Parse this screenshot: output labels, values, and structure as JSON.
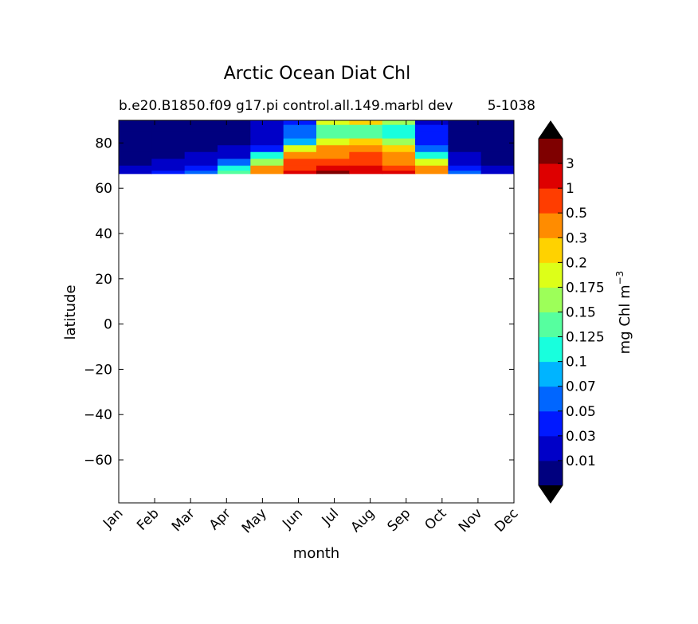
{
  "chart_data": {
    "type": "heatmap",
    "title": "Arctic Ocean Diat Chl",
    "subtitle_left": "b.e20.B1850.f09 g17.pi control.all.149.marbl dev",
    "subtitle_right": "5-1038",
    "xlabel": "month",
    "ylabel": "latitude",
    "x_ticks": [
      "Jan",
      "Feb",
      "Mar",
      "Apr",
      "May",
      "Jun",
      "Jul",
      "Aug",
      "Sep",
      "Oct",
      "Nov",
      "Dec"
    ],
    "y_ticks": [
      80,
      60,
      40,
      20,
      0,
      -20,
      -40,
      -60
    ],
    "y_tick_labels": [
      "80",
      "60",
      "40",
      "20",
      "0",
      "−20",
      "−40",
      "−60"
    ],
    "ylim": [
      -79,
      90
    ],
    "data_lat_min": 66.5,
    "colorbar": {
      "label": "mg Chl m",
      "label_exponent": "−3",
      "levels": [
        "0.01",
        "0.03",
        "0.05",
        "0.07",
        "0.1",
        "0.125",
        "0.15",
        "0.175",
        "0.2",
        "0.3",
        "0.5",
        "1",
        "3"
      ],
      "colors": [
        "#00007f",
        "#0000c8",
        "#0019ff",
        "#0066ff",
        "#00b4ff",
        "#18ffdd",
        "#56ff9f",
        "#9dff59",
        "#ddff18",
        "#ffd200",
        "#ff8c00",
        "#ff3d00",
        "#de0000",
        "#7f0000"
      ],
      "extend_colors": [
        "#000000",
        "#000000"
      ]
    },
    "grid_lat": [
      89.5,
      86.5,
      83.5,
      80.5,
      77.5,
      74.5,
      71.5,
      68.5,
      67
    ],
    "z": [
      [
        0,
        0,
        0,
        0,
        1,
        2,
        8,
        9,
        7,
        1,
        0,
        0
      ],
      [
        0,
        0,
        0,
        0,
        1,
        3,
        6,
        6,
        5,
        2,
        0,
        0
      ],
      [
        0,
        0,
        0,
        0,
        1,
        3,
        6,
        6,
        5,
        2,
        0,
        0
      ],
      [
        0,
        0,
        0,
        0,
        1,
        4,
        8,
        9,
        7,
        2,
        0,
        0
      ],
      [
        0,
        0,
        0,
        1,
        2,
        8,
        10,
        10,
        9,
        3,
        0,
        0
      ],
      [
        0,
        0,
        1,
        1,
        5,
        10,
        10,
        11,
        10,
        5,
        1,
        0
      ],
      [
        0,
        1,
        1,
        3,
        7,
        11,
        11,
        11,
        10,
        8,
        1,
        0
      ],
      [
        1,
        1,
        2,
        5,
        10,
        11,
        12,
        12,
        11,
        10,
        2,
        1
      ],
      [
        1,
        2,
        3,
        6,
        10,
        12,
        13,
        12,
        12,
        10,
        3,
        1
      ]
    ]
  }
}
